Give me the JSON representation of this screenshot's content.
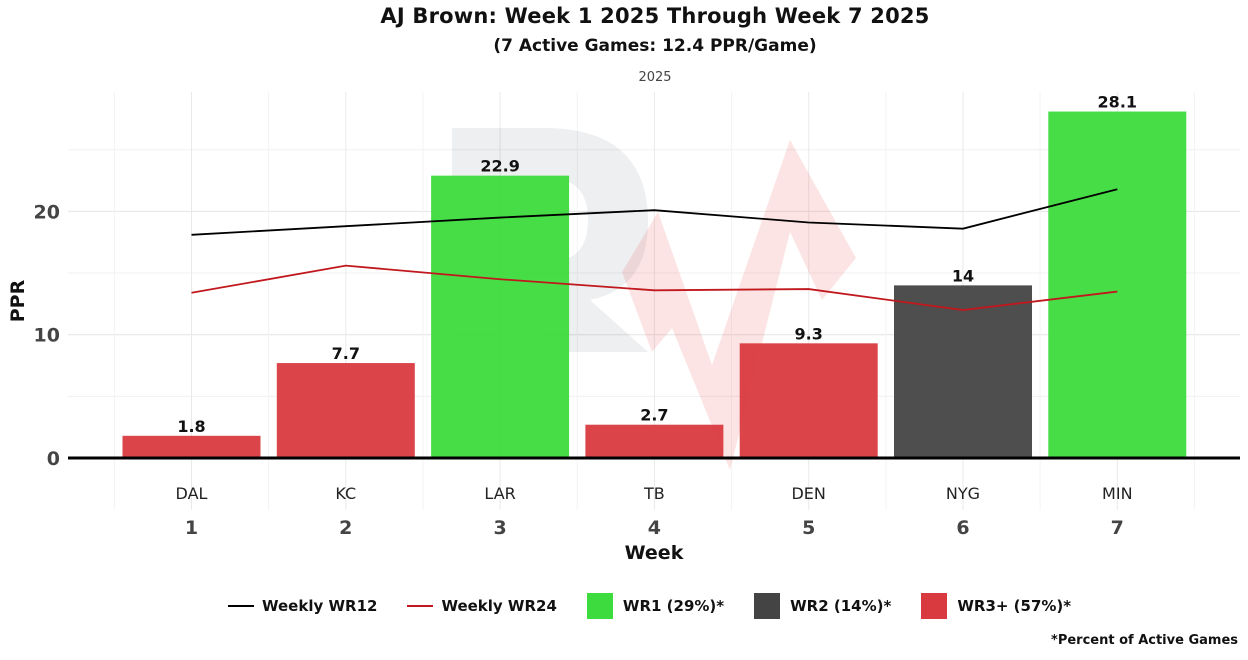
{
  "chart_data": {
    "type": "bar",
    "title": "AJ Brown: Week 1 2025 Through Week 7 2025",
    "subtitle": "(7 Active Games: 12.4 PPR/Game)",
    "facet_label": "2025",
    "xlabel": "Week",
    "ylabel": "PPR",
    "ylim": [
      0,
      29.5
    ],
    "yticks": [
      0,
      10,
      20
    ],
    "grid": true,
    "categories": [
      "1",
      "2",
      "3",
      "4",
      "5",
      "6",
      "7"
    ],
    "opponents": [
      "DAL",
      "KC",
      "LAR",
      "TB",
      "DEN",
      "NYG",
      "MIN"
    ],
    "values": [
      1.8,
      7.7,
      22.9,
      2.7,
      9.3,
      14,
      28.1
    ],
    "value_labels": [
      "1.8",
      "7.7",
      "22.9",
      "2.7",
      "9.3",
      "14",
      "28.1"
    ],
    "tiers": [
      "WR3+",
      "WR3+",
      "WR1",
      "WR3+",
      "WR3+",
      "WR2",
      "WR1"
    ],
    "tier_colors": {
      "WR1": "#3ddb3d",
      "WR2": "#444444",
      "WR3+": "#d93a3f"
    },
    "series": [
      {
        "name": "Weekly WR12",
        "color": "#000000",
        "values": [
          18.1,
          18.8,
          19.5,
          20.1,
          19.1,
          18.6,
          21.8
        ]
      },
      {
        "name": "Weekly WR24",
        "color": "#c0181d",
        "values": [
          13.4,
          15.6,
          14.5,
          13.6,
          13.7,
          12.0,
          13.5
        ]
      }
    ],
    "legend": {
      "position": "bottom",
      "items": [
        {
          "kind": "line",
          "label": "Weekly WR12",
          "color": "#000000"
        },
        {
          "kind": "line",
          "label": "Weekly WR24",
          "color": "#c0181d"
        },
        {
          "kind": "box",
          "label": "WR1 (29%)*",
          "color": "#3ddb3d"
        },
        {
          "kind": "box",
          "label": "WR2 (14%)*",
          "color": "#444444"
        },
        {
          "kind": "box",
          "label": "WR3+ (57%)*",
          "color": "#d93a3f"
        }
      ]
    },
    "footnote": "*Percent of Active Games"
  }
}
